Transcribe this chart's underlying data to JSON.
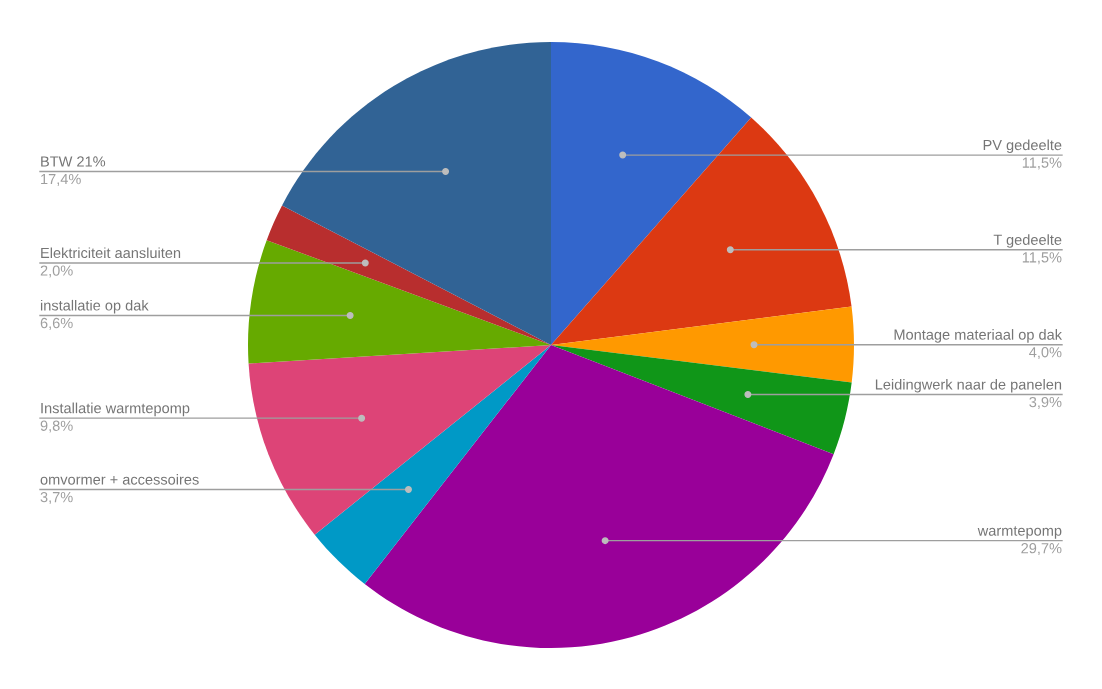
{
  "chart_data": {
    "type": "pie",
    "categories": [
      "PV gedeelte",
      "T gedeelte",
      "Montage materiaal op dak",
      "Leidingwerk naar de panelen",
      "warmtepomp",
      "omvormer + accessoires",
      "Installatie warmtepomp",
      "installatie op dak",
      "Elektriciteit aansluiten",
      "BTW 21%"
    ],
    "values": [
      11.5,
      11.5,
      4.0,
      3.9,
      29.7,
      3.7,
      9.8,
      6.6,
      2.0,
      17.4
    ],
    "value_labels": [
      "11,5%",
      "11,5%",
      "4,0%",
      "3,9%",
      "29,7%",
      "3,7%",
      "9,8%",
      "6,6%",
      "2,0%",
      "17,4%"
    ],
    "colors": [
      "#3366cc",
      "#dc3912",
      "#ff9900",
      "#109618",
      "#990099",
      "#0099c6",
      "#dd4477",
      "#66aa00",
      "#b82e2e",
      "#316395"
    ],
    "legend": false
  }
}
